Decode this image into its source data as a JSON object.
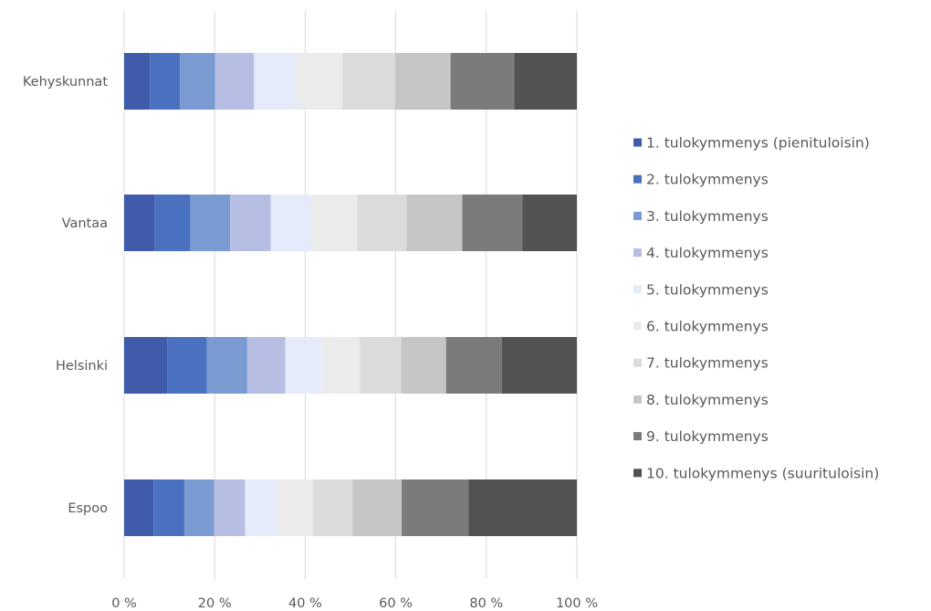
{
  "chart_data": {
    "type": "bar",
    "orientation": "horizontal",
    "stacked": "percent",
    "categories": [
      "Kehyskunnat",
      "Vantaa",
      "Helsinki",
      "Espoo"
    ],
    "series": [
      {
        "name": "1. tulokymmenys (pienituloisin)",
        "color": "#3f5ba9",
        "values": [
          5.7,
          6.8,
          9.5,
          6.5
        ]
      },
      {
        "name": "2. tulokymmenys",
        "color": "#4a72c0",
        "values": [
          6.6,
          7.8,
          8.8,
          6.8
        ]
      },
      {
        "name": "3. tulokymmenys",
        "color": "#7a9bd2",
        "values": [
          7.8,
          8.8,
          8.9,
          6.6
        ]
      },
      {
        "name": "4. tulokymmenys",
        "color": "#b6bfe3",
        "values": [
          8.6,
          9.0,
          8.4,
          6.8
        ]
      },
      {
        "name": "5. tulokymmenys",
        "color": "#e5ebfb",
        "values": [
          9.3,
          9.0,
          8.1,
          7.1
        ]
      },
      {
        "name": "6. tulokymmenys",
        "color": "#ebebeb",
        "values": [
          10.2,
          10.1,
          8.4,
          7.9
        ]
      },
      {
        "name": "7. tulokymmenys",
        "color": "#dbdbdb",
        "values": [
          11.6,
          10.9,
          9.1,
          8.8
        ]
      },
      {
        "name": "8. tulokymmenys",
        "color": "#c6c6c6",
        "values": [
          12.3,
          12.3,
          9.9,
          10.8
        ]
      },
      {
        "name": "9. tulokymmenys",
        "color": "#7b7b7b",
        "values": [
          14.1,
          13.3,
          12.3,
          14.8
        ]
      },
      {
        "name": "10. tulokymmenys (suurituloisin)",
        "color": "#525252",
        "values": [
          13.8,
          12.0,
          16.6,
          23.9
        ]
      }
    ],
    "x_ticks": [
      "0 %",
      "20 %",
      "40 %",
      "60 %",
      "80 %",
      "100 %"
    ],
    "xlim": [
      0,
      100
    ],
    "grid": "vertical",
    "legend_position": "right",
    "title": "",
    "xlabel": "",
    "ylabel": ""
  }
}
